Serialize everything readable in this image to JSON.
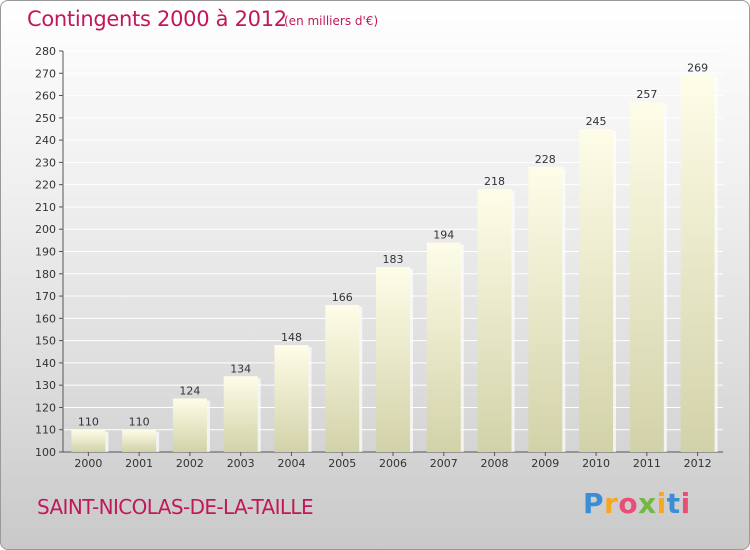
{
  "header": {
    "title": "Contingents 2000 à 2012",
    "subtitle": "(en milliers d'€)"
  },
  "footer": {
    "town": "SAINT-NICOLAS-DE-LA-TAILLE",
    "brand_letters": [
      "P",
      "r",
      "o",
      "x",
      "i",
      "t",
      "i"
    ],
    "brand_colors": [
      "#3b8ed6",
      "#f7a823",
      "#e94e77",
      "#74b843",
      "#f7a823",
      "#3b8ed6",
      "#e94e77"
    ]
  },
  "chart_data": {
    "type": "bar",
    "categories": [
      "2000",
      "2001",
      "2002",
      "2003",
      "2004",
      "2005",
      "2006",
      "2007",
      "2008",
      "2009",
      "2010",
      "2011",
      "2012"
    ],
    "values": [
      110,
      110,
      124,
      134,
      148,
      166,
      183,
      194,
      218,
      228,
      245,
      257,
      269
    ],
    "title": "Contingents 2000 à 2012",
    "subtitle": "(en milliers d'€)",
    "xlabel": "",
    "ylabel": "",
    "ylim": [
      100,
      280
    ],
    "yticks": [
      100,
      110,
      120,
      130,
      140,
      150,
      160,
      170,
      180,
      190,
      200,
      210,
      220,
      230,
      240,
      250,
      260,
      270,
      280
    ],
    "grid": true,
    "bar_color_top": "#fefde8",
    "bar_color_bottom": "#d2d2a9"
  }
}
